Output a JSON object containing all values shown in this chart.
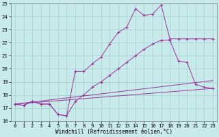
{
  "xlabel": "Windchill (Refroidissement éolien,°C)",
  "bg_color": "#c8eaea",
  "grid_color": "#a0cccc",
  "line_color": "#993399",
  "xlim_min": -0.5,
  "xlim_max": 23.5,
  "ylim_min": 16,
  "ylim_max": 25,
  "xticks": [
    0,
    1,
    2,
    3,
    4,
    5,
    6,
    7,
    8,
    9,
    10,
    11,
    12,
    13,
    14,
    15,
    16,
    17,
    18,
    19,
    20,
    21,
    22,
    23
  ],
  "yticks": [
    16,
    17,
    18,
    19,
    20,
    21,
    22,
    23,
    24,
    25
  ],
  "line1_x": [
    0,
    1,
    2,
    3,
    4,
    5,
    6,
    7,
    8,
    9,
    10,
    11,
    12,
    13,
    14,
    15,
    16,
    17,
    18,
    19,
    20,
    21,
    22,
    23
  ],
  "line1_y": [
    17.3,
    17.2,
    17.5,
    17.3,
    17.3,
    16.5,
    16.4,
    19.8,
    19.8,
    20.4,
    20.9,
    21.9,
    22.8,
    23.2,
    24.6,
    24.1,
    24.2,
    24.9,
    22.3,
    22.3,
    22.3,
    22.3,
    22.3,
    22.3
  ],
  "line2_x": [
    0,
    1,
    2,
    3,
    4,
    5,
    6,
    7,
    8,
    9,
    10,
    11,
    12,
    13,
    14,
    15,
    16,
    17,
    18,
    19,
    20,
    21,
    22,
    23
  ],
  "line2_y": [
    17.3,
    17.2,
    17.5,
    17.3,
    17.3,
    16.5,
    16.4,
    17.5,
    18.0,
    18.6,
    19.0,
    19.5,
    20.0,
    20.5,
    21.0,
    21.5,
    21.9,
    22.2,
    22.2,
    20.6,
    20.5,
    18.8,
    18.6,
    18.5
  ],
  "line3_x": [
    0,
    23
  ],
  "line3_y": [
    17.3,
    18.5
  ],
  "line4_x": [
    0,
    23
  ],
  "line4_y": [
    17.3,
    19.1
  ]
}
